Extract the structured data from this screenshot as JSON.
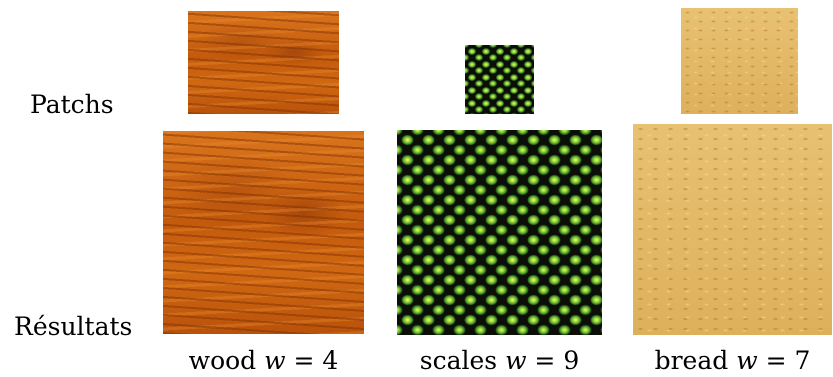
{
  "row_labels": {
    "patchs": "Patchs",
    "resultats": "Résultats"
  },
  "columns": [
    {
      "name": "wood",
      "w_var": "w",
      "equals": "=",
      "w_value": "4"
    },
    {
      "name": "scales",
      "w_var": "w",
      "equals": "=",
      "w_value": "9"
    },
    {
      "name": "bread",
      "w_var": "w",
      "equals": "=",
      "w_value": "7"
    }
  ]
}
